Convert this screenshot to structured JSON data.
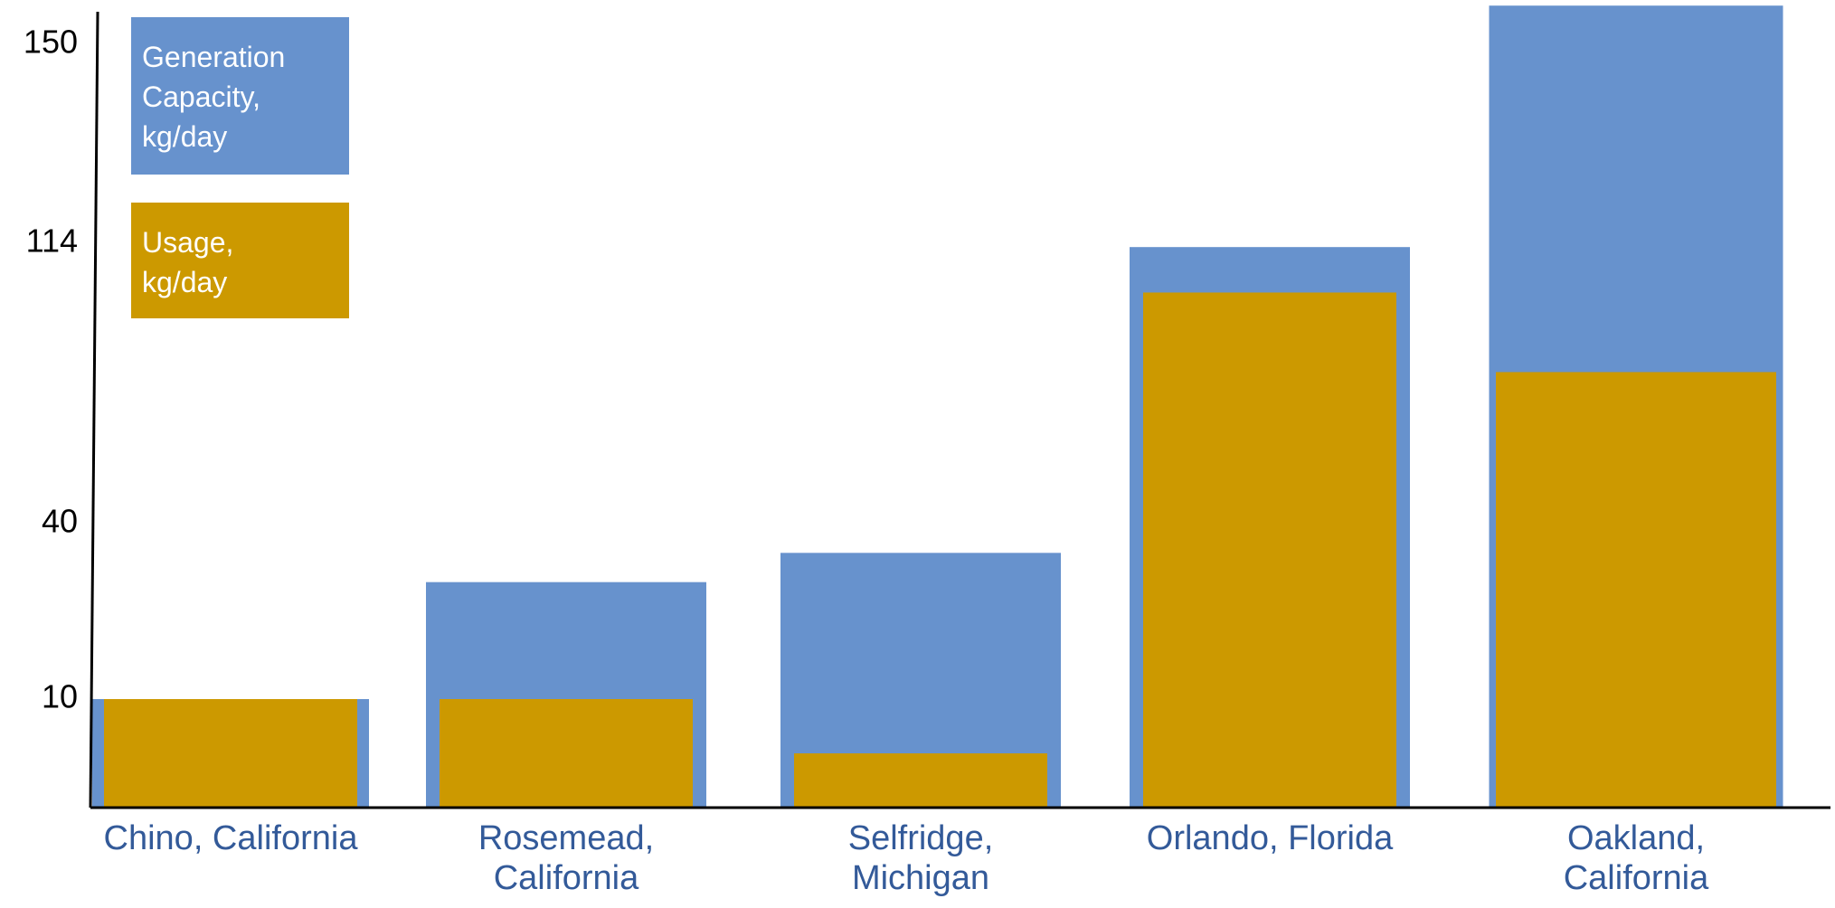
{
  "chart_data": {
    "type": "bar",
    "categories": [
      "Chino, California",
      "Rosemead, California",
      "Selfridge, Michigan",
      "Orlando, Florida",
      "Oakland, California"
    ],
    "series": [
      {
        "name": "Generation Capacity, kg/day",
        "color": "#6792cd",
        "values": [
          10,
          30,
          35,
          113,
          157
        ]
      },
      {
        "name": "Usage, kg/day",
        "color": "#cc9900",
        "values": [
          10,
          10,
          5,
          101,
          80
        ]
      }
    ],
    "ylim": [
      0,
      157
    ],
    "yticks": [
      10,
      40,
      114,
      150
    ],
    "scale": "piecewise",
    "grid": false,
    "legend": "top-left"
  }
}
